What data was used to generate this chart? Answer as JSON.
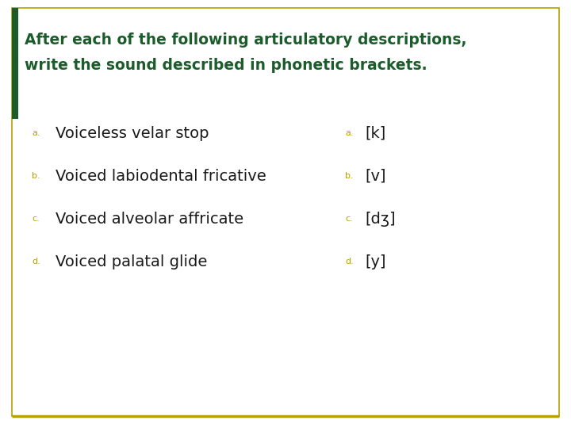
{
  "title_line1": "After each of the following articulatory descriptions,",
  "title_line2": "write the sound described in phonetic brackets.",
  "title_color": "#1a5c2a",
  "title_fontsize": 13.5,
  "items": [
    {
      "label": "a.",
      "description": "Voiceless velar stop",
      "answer_label": "a.",
      "answer": "[k]"
    },
    {
      "label": "b.",
      "description": "Voiced labiodental fricative",
      "answer_label": "b.",
      "answer": "[v]"
    },
    {
      "label": "c.",
      "description": "Voiced alveolar affricate",
      "answer_label": "c.",
      "answer": "[dʒ]"
    },
    {
      "label": "d.",
      "description": "Voiced palatal glide",
      "answer_label": "d.",
      "answer": "[y]"
    }
  ],
  "label_color": "#b8a000",
  "label_fontsize": 8,
  "desc_fontsize": 14,
  "desc_color": "#1a1a1a",
  "answer_label_color": "#b8a000",
  "answer_label_fontsize": 8,
  "answer_fontsize": 14,
  "answer_color": "#1a1a1a",
  "bg_color": "#ffffff",
  "border_color": "#b8a000",
  "left_bar_color": "#1a5c2a",
  "figure_width": 7.2,
  "figure_height": 5.4,
  "dpi": 100
}
